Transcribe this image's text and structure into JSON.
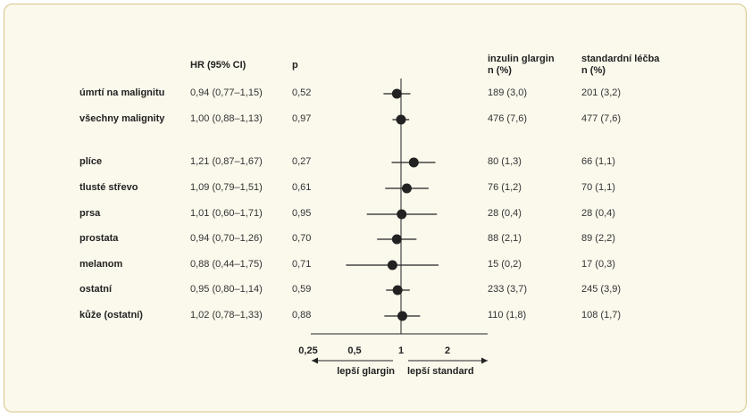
{
  "headers": {
    "hr": "HR (95% CI)",
    "p": "p",
    "glargin_line1": "inzulin glargin",
    "glargin_line2": "n (%)",
    "standard_line1": "standardní léčba",
    "standard_line2": "n (%)"
  },
  "axis": {
    "scale": "log",
    "ticks": [
      "0,25",
      "0,5",
      "1",
      "2"
    ],
    "left_arrow_label": "lepší glargin",
    "right_arrow_label": "lepší standard"
  },
  "chart_data": {
    "type": "forest",
    "x_scale": "log",
    "xlim": [
      0.25,
      3
    ],
    "reference_line": 1,
    "rows": [
      {
        "label": "úmrtí na malignitu",
        "hr_text": "0,94 (0,77–1,15)",
        "p": "0,52",
        "glargin": "189 (3,0)",
        "standard": "201 (3,2)",
        "hr": 0.94,
        "lo": 0.77,
        "hi": 1.15
      },
      {
        "label": "všechny malignity",
        "hr_text": "1,00 (0,88–1,13)",
        "p": "0,97",
        "glargin": "476 (7,6)",
        "standard": "477 (7,6)",
        "hr": 1.0,
        "lo": 0.88,
        "hi": 1.13
      },
      {
        "label": "plíce",
        "hr_text": "1,21 (0,87–1,67)",
        "p": "0,27",
        "glargin": "80 (1,3)",
        "standard": "66 (1,1)",
        "hr": 1.21,
        "lo": 0.87,
        "hi": 1.67
      },
      {
        "label": "tlusté střevo",
        "hr_text": "1,09 (0,79–1,51)",
        "p": "0,61",
        "glargin": "76 (1,2)",
        "standard": "70 (1,1)",
        "hr": 1.09,
        "lo": 0.79,
        "hi": 1.51
      },
      {
        "label": "prsa",
        "hr_text": "1,01 (0,60–1,71)",
        "p": "0,95",
        "glargin": "28 (0,4)",
        "standard": "28 (0,4)",
        "hr": 1.01,
        "lo": 0.6,
        "hi": 1.71
      },
      {
        "label": "prostata",
        "hr_text": "0,94 (0,70–1,26)",
        "p": "0,70",
        "glargin": "88 (2,1)",
        "standard": "89 (2,2)",
        "hr": 0.94,
        "lo": 0.7,
        "hi": 1.26
      },
      {
        "label": "melanom",
        "hr_text": "0,88 (0,44–1,75)",
        "p": "0,71",
        "glargin": "15 (0,2)",
        "standard": "17 (0,3)",
        "hr": 0.88,
        "lo": 0.44,
        "hi": 1.75
      },
      {
        "label": "ostatní",
        "hr_text": "0,95 (0,80–1,14)",
        "p": "0,59",
        "glargin": "233 (3,7)",
        "standard": "245 (3,9)",
        "hr": 0.95,
        "lo": 0.8,
        "hi": 1.14
      },
      {
        "label": "kůže (ostatní)",
        "hr_text": "1,02 (0,78–1,33)",
        "p": "0,88",
        "glargin": "110 (1,8)",
        "standard": "108 (1,7)",
        "hr": 1.02,
        "lo": 0.78,
        "hi": 1.33
      }
    ]
  }
}
